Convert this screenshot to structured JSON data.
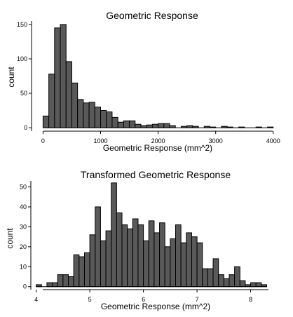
{
  "colors": {
    "bar_fill": "#595959",
    "bar_stroke": "#000000",
    "axis": "#000000",
    "background": "#ffffff"
  },
  "chart_data": [
    {
      "type": "bar",
      "title": "Geometric Response",
      "xlabel": "Geometric Response (mm^2)",
      "ylabel": "count",
      "xlim": [
        -200,
        4100
      ],
      "ylim": [
        -5,
        155
      ],
      "xticks": [
        0,
        1000,
        2000,
        3000,
        4000
      ],
      "yticks": [
        0,
        50,
        100,
        150
      ],
      "bin_width": 100,
      "bin_starts": [
        0,
        100,
        200,
        300,
        400,
        500,
        600,
        700,
        800,
        900,
        1000,
        1100,
        1200,
        1300,
        1400,
        1500,
        1600,
        1700,
        1800,
        1900,
        2000,
        2100,
        2200,
        2300,
        2400,
        2500,
        2600,
        2700,
        2800,
        2900,
        3000,
        3100,
        3200,
        3300,
        3400,
        3500,
        3600,
        3700,
        3800,
        3900
      ],
      "values": [
        17,
        78,
        145,
        150,
        96,
        65,
        41,
        36,
        37,
        30,
        25,
        23,
        15,
        8,
        10,
        10,
        5,
        3,
        4,
        5,
        6,
        6,
        3,
        0,
        2,
        3,
        2,
        0,
        2,
        1,
        0,
        2,
        1,
        0,
        1,
        0,
        0,
        1,
        0,
        1
      ],
      "grid": false,
      "legend": "none"
    },
    {
      "type": "bar",
      "title": "Transformed Geometric Response",
      "xlabel": "Geometric Response (mm^2)",
      "ylabel": "count",
      "xlim": [
        3.9,
        8.45
      ],
      "ylim": [
        -1.5,
        53
      ],
      "xticks": [
        4,
        5,
        6,
        7,
        8
      ],
      "yticks": [
        0,
        10,
        20,
        30,
        40,
        50
      ],
      "bin_width": 0.1,
      "bin_starts": [
        4.0,
        4.1,
        4.2,
        4.3,
        4.4,
        4.5,
        4.6,
        4.7,
        4.8,
        4.9,
        5.0,
        5.1,
        5.2,
        5.3,
        5.4,
        5.5,
        5.6,
        5.7,
        5.8,
        5.9,
        6.0,
        6.1,
        6.2,
        6.3,
        6.4,
        6.5,
        6.6,
        6.7,
        6.8,
        6.9,
        7.0,
        7.1,
        7.2,
        7.3,
        7.4,
        7.5,
        7.6,
        7.7,
        7.8,
        7.9,
        8.0,
        8.1,
        8.2
      ],
      "values": [
        1,
        0,
        2,
        2,
        6,
        6,
        5,
        16,
        15,
        17,
        26,
        40,
        23,
        28,
        52,
        37,
        31,
        29,
        34,
        31,
        23,
        33,
        27,
        32,
        20,
        24,
        31,
        22,
        27,
        25,
        22,
        9,
        9,
        14,
        6,
        4,
        6,
        10,
        3,
        1,
        2,
        2,
        1
      ],
      "grid": false,
      "legend": "none"
    }
  ]
}
